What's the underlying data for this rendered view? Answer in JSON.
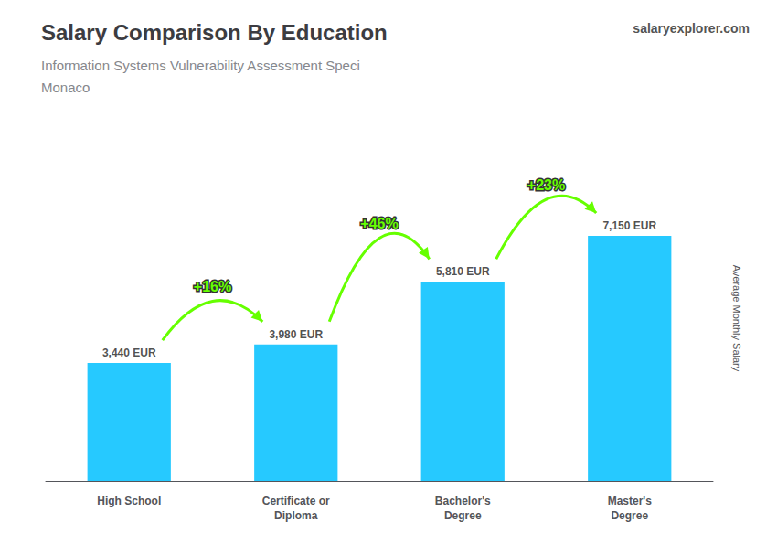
{
  "chart_data": {
    "type": "bar",
    "title": "Salary Comparison By Education",
    "subtitle": [
      "Information Systems Vulnerability Assessment Speci",
      "Monaco"
    ],
    "credit": "salaryexplorer.com",
    "ylabel": "Average Monthly Salary",
    "categories": [
      "High School",
      "Certificate or\nDiploma",
      "Bachelor's\nDegree",
      "Master's\nDegree"
    ],
    "values": [
      3440,
      3980,
      5810,
      7150
    ],
    "value_labels": [
      "3,440 EUR",
      "3,980 EUR",
      "5,810 EUR",
      "7,150 EUR"
    ],
    "data_labels": true,
    "color": "#00BFFF",
    "annotations": [
      {
        "text": "+16%",
        "color": "#66FF00"
      },
      {
        "text": "+46%",
        "color": "#66FF00"
      },
      {
        "text": "+23%",
        "color": "#66FF00"
      }
    ],
    "ylim": [
      0,
      9500
    ],
    "grid": false,
    "tick_labels": "x"
  }
}
